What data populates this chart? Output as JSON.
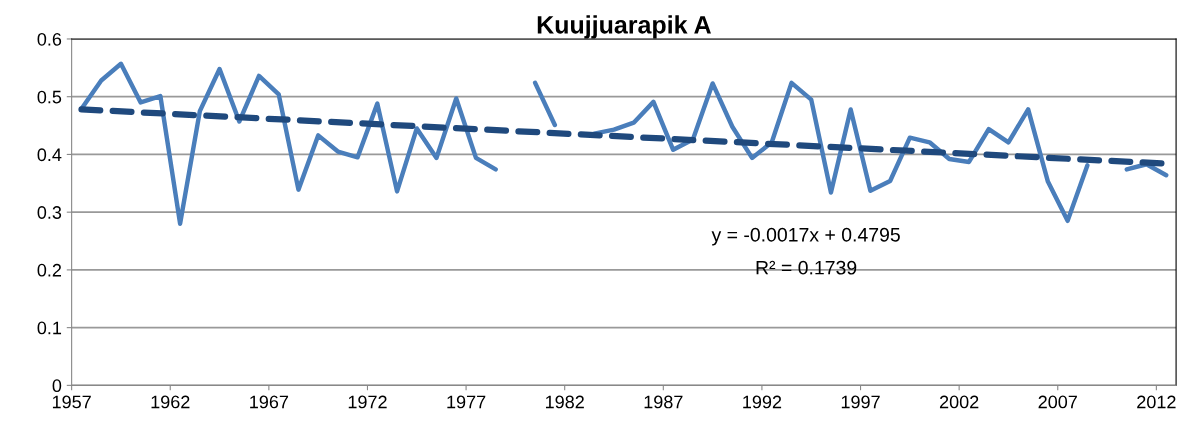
{
  "chart_data": {
    "type": "line",
    "title": "Kuujjuarapik A",
    "x": [
      1957.5,
      1958.5,
      1959.5,
      1960.5,
      1961.5,
      1962.5,
      1963.5,
      1964.5,
      1965.5,
      1966.5,
      1967.5,
      1968.5,
      1969.5,
      1970.5,
      1971.5,
      1972.5,
      1973.5,
      1974.5,
      1975.5,
      1976.5,
      1977.5,
      1978.5,
      1979.5,
      1980.5,
      1981.5,
      1982.5,
      1983.5,
      1984.5,
      1985.5,
      1986.5,
      1987.5,
      1988.5,
      1989.5,
      1990.5,
      1991.5,
      1992.5,
      1993.5,
      1994.5,
      1995.5,
      1996.5,
      1997.5,
      1998.5,
      1999.5,
      2000.5,
      2001.5,
      2002.5,
      2003.5,
      2004.5,
      2005.5,
      2006.5,
      2007.5,
      2008.5,
      2009.5,
      2010.5,
      2011.5,
      2012.5
    ],
    "series": [
      {
        "color": "#4a7ebb",
        "line_style": "solid",
        "values": [
          0.479,
          0.528,
          0.557,
          0.49,
          0.501,
          0.28,
          0.475,
          0.548,
          0.457,
          0.536,
          0.504,
          0.339,
          0.433,
          0.405,
          0.395,
          0.488,
          0.336,
          0.445,
          0.394,
          0.497,
          0.394,
          0.374,
          null,
          0.524,
          0.451,
          null,
          0.436,
          0.443,
          0.455,
          0.491,
          0.408,
          0.426,
          0.523,
          0.448,
          0.394,
          0.421,
          0.524,
          0.495,
          0.334,
          0.478,
          0.337,
          0.354,
          0.429,
          0.421,
          0.392,
          0.387,
          0.444,
          0.421,
          0.478,
          0.353,
          0.285,
          0.381,
          null,
          0.374,
          0.383,
          0.364
        ]
      },
      {
        "type": "line",
        "color": "#1f497d",
        "line_style": "dashed",
        "x": [
          1957.5,
          2012.5
        ],
        "values": [
          0.478,
          0.384
        ]
      }
    ],
    "annotations": [
      "y = -0.0017x + 0.4795",
      "R² = 0.1739"
    ],
    "xlim": [
      1957,
      2013
    ],
    "xticks": [
      1957,
      1962,
      1967,
      1972,
      1977,
      1982,
      1987,
      1992,
      1997,
      2002,
      2007,
      2012
    ],
    "ylim": [
      0,
      0.6
    ],
    "yticks": [
      0,
      0.1,
      0.2,
      0.3,
      0.4,
      0.5,
      0.6
    ],
    "grid": "y",
    "legend": false,
    "marker": "none"
  }
}
